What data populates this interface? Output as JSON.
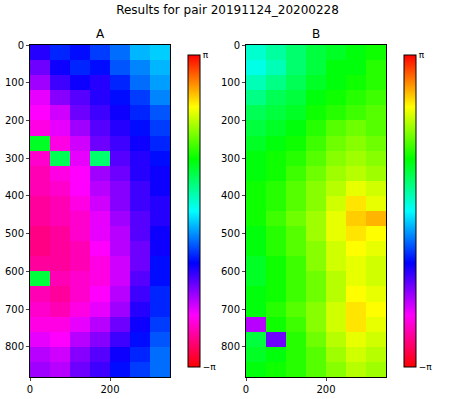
{
  "chart_data": {
    "type": "heatmap",
    "title": "Results for pair 20191124_20200228",
    "panels": [
      {
        "title": "A",
        "x": [
          25,
          75,
          125,
          175,
          225,
          275,
          325
        ],
        "y": [
          20,
          60,
          100,
          140,
          180,
          220,
          260,
          300,
          340,
          380,
          420,
          460,
          500,
          540,
          580,
          620,
          660,
          700,
          740,
          780,
          820,
          860
        ],
        "xlim": [
          0,
          350
        ],
        "ylim": [
          880,
          0
        ],
        "xticks": [
          0,
          200
        ],
        "yticks": [
          0,
          100,
          200,
          300,
          400,
          500,
          600,
          700,
          800
        ],
        "clim": [
          -3.14159,
          3.14159
        ],
        "cticks": [
          {
            "value": -3.14159,
            "label": "−π"
          },
          {
            "value": 3.14159,
            "label": "π"
          }
        ],
        "cells": [
          [
            -1.2,
            -0.9,
            -1.0,
            -0.8,
            -0.6,
            -0.3,
            -0.2
          ],
          [
            -1.5,
            -1.1,
            -0.9,
            -1.0,
            -0.7,
            -0.5,
            -0.3
          ],
          [
            -1.7,
            -1.3,
            -1.1,
            -1.2,
            -0.9,
            -0.6,
            -0.4
          ],
          [
            -2.0,
            -1.6,
            -1.4,
            -1.2,
            -1.0,
            -0.8,
            -0.5
          ],
          [
            -2.1,
            -1.9,
            -1.5,
            -1.3,
            -1.1,
            -0.9,
            -0.7
          ],
          [
            -2.2,
            -2.0,
            -1.7,
            -1.4,
            -1.2,
            -1.0,
            -0.8
          ],
          [
            0.9,
            -2.2,
            -1.9,
            -1.5,
            -1.3,
            -1.1,
            -0.9
          ],
          [
            -2.3,
            0.7,
            -2.0,
            0.6,
            -1.4,
            -1.2,
            -1.0
          ],
          [
            -2.4,
            -2.2,
            -2.1,
            -1.7,
            -1.5,
            -1.2,
            -1.1
          ],
          [
            -2.4,
            -2.3,
            -2.1,
            -1.8,
            -1.6,
            -1.3,
            -1.1
          ],
          [
            -2.5,
            -2.4,
            -2.2,
            -1.9,
            -1.6,
            -1.3,
            -1.2
          ],
          [
            -2.5,
            -2.4,
            -2.3,
            -2.0,
            -1.7,
            -1.4,
            -1.2
          ],
          [
            -2.6,
            -2.5,
            -2.3,
            -2.0,
            -1.8,
            -1.4,
            -1.1
          ],
          [
            -2.6,
            -2.5,
            -2.4,
            -2.1,
            -1.8,
            -1.5,
            -1.1
          ],
          [
            -2.5,
            -2.5,
            -2.4,
            -2.2,
            -1.9,
            -1.5,
            -1.0
          ],
          [
            0.8,
            -2.4,
            -2.3,
            -2.2,
            -1.9,
            -1.4,
            -1.0
          ],
          [
            -2.4,
            -2.5,
            -2.3,
            -2.1,
            -1.8,
            -1.3,
            -0.9
          ],
          [
            -2.3,
            -2.4,
            -2.2,
            -2.0,
            -1.7,
            -1.2,
            -0.9
          ],
          [
            -2.2,
            -2.2,
            -2.0,
            -1.8,
            -1.5,
            -1.1,
            -0.8
          ],
          [
            -2.0,
            -2.1,
            -1.8,
            -1.6,
            -1.3,
            -1.0,
            -0.7
          ],
          [
            -1.8,
            -1.9,
            -1.6,
            -1.4,
            -1.1,
            -0.9,
            -0.6
          ],
          [
            -1.7,
            -1.8,
            -1.5,
            -1.3,
            -1.0,
            -0.8,
            -0.6
          ]
        ]
      },
      {
        "title": "B",
        "x": [
          25,
          75,
          125,
          175,
          225,
          275,
          325
        ],
        "y": [
          20,
          60,
          100,
          140,
          180,
          220,
          260,
          300,
          340,
          380,
          420,
          460,
          500,
          540,
          580,
          620,
          660,
          700,
          740,
          780,
          820,
          860
        ],
        "xlim": [
          0,
          350
        ],
        "ylim": [
          880,
          0
        ],
        "xticks": [
          0,
          200
        ],
        "yticks": [
          0,
          100,
          200,
          300,
          400,
          500,
          600,
          700,
          800
        ],
        "clim": [
          -3.14159,
          3.14159
        ],
        "cticks": [
          {
            "value": -3.14159,
            "label": "−π"
          },
          {
            "value": 3.14159,
            "label": "π"
          }
        ],
        "cells": [
          [
            0.2,
            0.4,
            0.6,
            0.8,
            0.9,
            1.0,
            1.1
          ],
          [
            0.1,
            0.3,
            0.6,
            0.8,
            1.0,
            1.0,
            1.2
          ],
          [
            0.3,
            0.5,
            0.7,
            0.9,
            1.0,
            1.1,
            1.2
          ],
          [
            0.5,
            0.7,
            0.8,
            1.0,
            1.1,
            1.2,
            1.3
          ],
          [
            0.7,
            0.8,
            0.9,
            1.1,
            1.2,
            1.3,
            1.4
          ],
          [
            0.8,
            0.9,
            1.0,
            1.2,
            1.4,
            1.5,
            1.4
          ],
          [
            0.9,
            1.0,
            1.1,
            1.3,
            1.5,
            1.6,
            1.5
          ],
          [
            1.0,
            1.1,
            1.2,
            1.4,
            1.6,
            1.7,
            1.6
          ],
          [
            1.0,
            1.1,
            1.3,
            1.5,
            1.7,
            1.8,
            1.7
          ],
          [
            1.1,
            1.2,
            1.4,
            1.6,
            1.8,
            2.0,
            1.9
          ],
          [
            1.1,
            1.2,
            1.4,
            1.6,
            1.9,
            2.2,
            2.0
          ],
          [
            1.1,
            1.3,
            1.5,
            1.7,
            2.0,
            2.3,
            2.4
          ],
          [
            1.0,
            1.2,
            1.4,
            1.7,
            2.0,
            2.2,
            2.1
          ],
          [
            1.0,
            1.2,
            1.4,
            1.6,
            1.9,
            2.1,
            2.0
          ],
          [
            0.9,
            1.1,
            1.3,
            1.6,
            1.9,
            2.0,
            1.9
          ],
          [
            0.9,
            1.1,
            1.3,
            1.5,
            1.8,
            2.0,
            1.9
          ],
          [
            1.0,
            1.1,
            1.3,
            1.5,
            1.8,
            2.1,
            2.0
          ],
          [
            1.0,
            1.2,
            1.4,
            1.6,
            1.9,
            2.2,
            2.1
          ],
          [
            -1.8,
            1.1,
            1.3,
            1.6,
            1.9,
            2.2,
            2.0
          ],
          [
            0.8,
            -1.5,
            1.2,
            1.5,
            1.8,
            2.0,
            1.9
          ],
          [
            0.9,
            1.0,
            1.2,
            1.4,
            1.7,
            1.9,
            1.8
          ],
          [
            1.0,
            1.1,
            1.2,
            1.4,
            1.6,
            1.8,
            1.7
          ]
        ]
      }
    ]
  }
}
